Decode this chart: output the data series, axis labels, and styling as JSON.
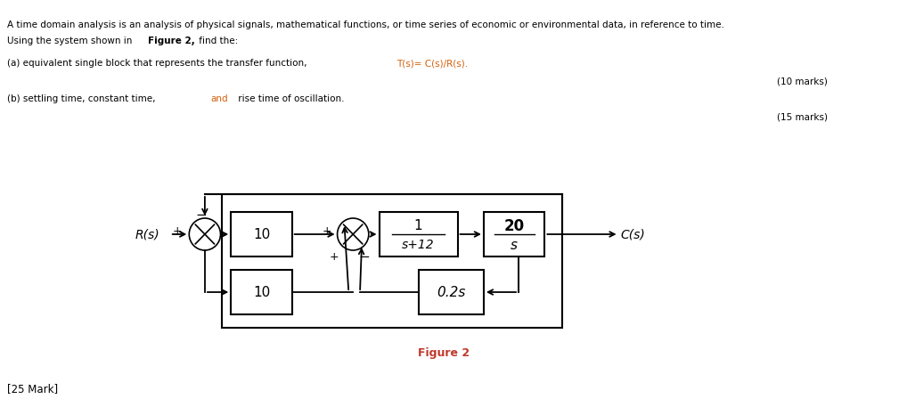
{
  "title_text": "A time domain analysis is an analysis of physical signals, mathematical functions, or time series of economic or environmental data, in reference to time.",
  "title_line2": "Using the system shown in ",
  "title_line2_bold": "Figure 2,",
  "title_line2_end": " find the:",
  "part_a_prefix": "(a) equivalent single block that represents the transfer function, ",
  "part_a_formula": "T(s)= C(s)/R(s).",
  "part_a_marks": "(10 marks)",
  "part_b_prefix": "(b) settling time, constant time, ",
  "part_b_and": "and",
  "part_b_end": " rise time of oscillation.",
  "part_b_marks": "(15 marks)",
  "figure_label": "Figure 2",
  "footer": "[25 Mark]",
  "text_color": "#000000",
  "orange_color": "#d4600a",
  "blue_color": "#0070c0",
  "fig_label_color": "#c0392b",
  "background": "#ffffff"
}
